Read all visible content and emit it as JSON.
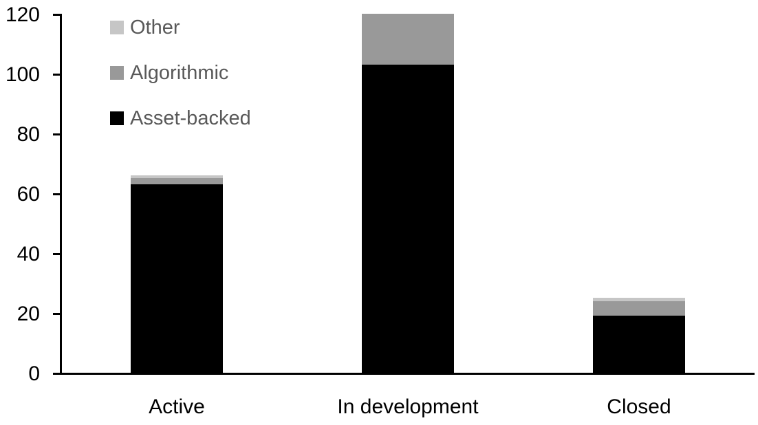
{
  "chart_data": {
    "type": "bar",
    "stacked": true,
    "title": "",
    "xlabel": "",
    "ylabel": "",
    "categories": [
      "Active",
      "In development",
      "Closed"
    ],
    "series": [
      {
        "name": "Asset-backed",
        "color": "#000000",
        "values": [
          63,
          103,
          19
        ]
      },
      {
        "name": "Algorithmic",
        "color": "#999999",
        "values": [
          2,
          17,
          5
        ]
      },
      {
        "name": "Other",
        "color": "#c6c6c6",
        "values": [
          1,
          0,
          1
        ]
      }
    ],
    "ylim": [
      0,
      120
    ],
    "ytick_step": 20,
    "ytick_labels": [
      "0",
      "20",
      "40",
      "60",
      "80",
      "100",
      "120"
    ],
    "grid": false,
    "legend_position": "top-left",
    "legend_order": [
      "Other",
      "Algorithmic",
      "Asset-backed"
    ],
    "legend_text_color": "#595959",
    "axis_color": "#000000",
    "background_color": "#ffffff"
  }
}
